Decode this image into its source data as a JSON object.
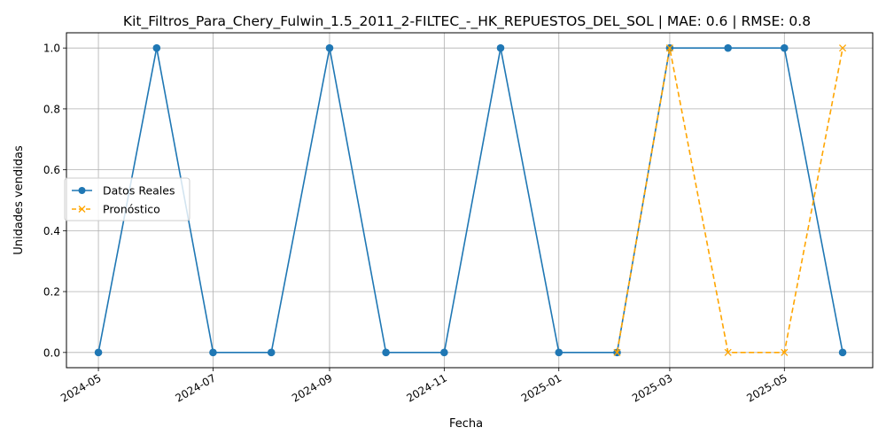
{
  "chart_data": {
    "type": "line",
    "title": "Kit_Filtros_Para_Chery_Fulwin_1.5_2011_2-FILTEC_-_HK_REPUESTOS_DEL_SOL | MAE: 0.6 | RMSE: 0.8",
    "xlabel": "Fecha",
    "ylabel": "Unidades vendidas",
    "grid": true,
    "legend_position": "center-left",
    "xlim": [
      "2024-04-14",
      "2025-06-17"
    ],
    "ylim": [
      -0.05,
      1.05
    ],
    "x_ticks": [
      "2024-05",
      "2024-07",
      "2024-09",
      "2024-11",
      "2025-01",
      "2025-03",
      "2025-05"
    ],
    "y_ticks": [
      "0.0",
      "0.2",
      "0.4",
      "0.6",
      "0.8",
      "1.0"
    ],
    "series": [
      {
        "name": "Datos Reales",
        "color": "#1f77b4",
        "line_style": "solid",
        "marker": "circle",
        "x": [
          "2024-05-01",
          "2024-06-01",
          "2024-07-01",
          "2024-08-01",
          "2024-09-01",
          "2024-10-01",
          "2024-11-01",
          "2024-12-01",
          "2025-01-01",
          "2025-02-01",
          "2025-03-01",
          "2025-04-01",
          "2025-05-01",
          "2025-06-01"
        ],
        "y": [
          0,
          1,
          0,
          0,
          1,
          0,
          0,
          1,
          0,
          0,
          1,
          1,
          1,
          0
        ]
      },
      {
        "name": "Pronóstico",
        "color": "#ffa500",
        "line_style": "dashed",
        "marker": "x",
        "x": [
          "2025-02-01",
          "2025-03-01",
          "2025-04-01",
          "2025-05-01",
          "2025-06-01"
        ],
        "y": [
          0,
          1,
          0,
          0,
          1
        ]
      }
    ]
  }
}
